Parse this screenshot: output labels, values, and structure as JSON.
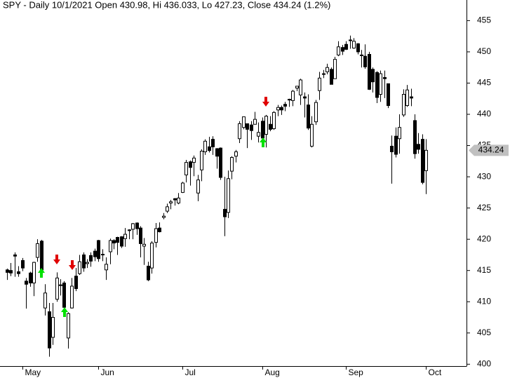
{
  "chart_data": {
    "type": "candlestick",
    "title": "SPY - Daily 10/1/2021 Open 430.98, Hi 436.033, Lo 427.23, Close 434.24 (1.2%)",
    "categories": [
      null,
      null,
      null,
      null,
      "May",
      null,
      null,
      null,
      null,
      null,
      null,
      null,
      null,
      null,
      null,
      null,
      null,
      null,
      null,
      null,
      null,
      null,
      null,
      null,
      "Jun",
      null,
      null,
      null,
      null,
      null,
      null,
      null,
      null,
      null,
      null,
      null,
      null,
      null,
      null,
      null,
      null,
      null,
      null,
      null,
      null,
      null,
      "Jul",
      null,
      null,
      null,
      null,
      null,
      null,
      null,
      null,
      null,
      null,
      null,
      null,
      null,
      null,
      null,
      null,
      null,
      null,
      null,
      null,
      "Aug",
      null,
      null,
      null,
      null,
      null,
      null,
      null,
      null,
      null,
      null,
      null,
      null,
      null,
      null,
      null,
      null,
      null,
      null,
      null,
      null,
      null,
      "Sep",
      null,
      null,
      null,
      null,
      null,
      null,
      null,
      null,
      null,
      null,
      null,
      null,
      null,
      null,
      null,
      null,
      null,
      null,
      null,
      null,
      "Oct"
    ],
    "open": [
      415.1,
      415.0,
      417.5,
      414.8,
      416.6,
      413.3,
      414.6,
      413.0,
      417.1,
      419.7,
      409.0,
      408.4,
      404.3,
      410.4,
      412.6,
      413.0,
      404.2,
      409.0,
      414.1,
      414.5,
      417.5,
      416.1,
      417.4,
      418.1,
      419.8,
      417.6,
      415.1,
      418.0,
      419.8,
      420.3,
      420.4,
      420.1,
      421.4,
      421.6,
      422.6,
      421.8,
      418.9,
      415.7,
      415.4,
      419.5,
      421.8,
      423.5,
      424.5,
      425.8,
      426.5,
      425.8,
      427.5,
      430.3,
      432.4,
      432.3,
      427.4,
      431.1,
      434.0,
      434.8,
      436.0,
      434.5,
      434.6,
      424.8,
      424.3,
      430.9,
      433.3,
      436.1,
      437.9,
      438.5,
      438.3,
      438.4,
      436.5,
      438.9,
      436.8,
      438.4,
      437.7,
      440.7,
      441.1,
      441.6,
      442.4,
      442.2,
      444.2,
      443.1,
      442.8,
      441.5,
      434.9,
      438.8,
      443.8,
      446.5,
      446.8,
      447.2,
      445.7,
      449.5,
      450.7,
      451.2,
      451.9,
      450.6,
      451.3,
      449.5,
      449.3,
      449.6,
      447.2,
      446.7,
      443.2,
      445.9,
      444.9,
      434.9,
      436.5,
      436.1,
      439.9,
      441.4,
      442.8,
      439.0,
      435.2,
      436.0,
      430.98
    ],
    "high": [
      415.3,
      416.2,
      417.9,
      415.7,
      417.0,
      413.8,
      414.8,
      416.4,
      420.0,
      419.9,
      412.8,
      409.8,
      409.8,
      414.7,
      413.6,
      413.3,
      408.3,
      413.8,
      415.4,
      417.5,
      417.9,
      416.8,
      417.9,
      418.5,
      419.9,
      418.4,
      417.1,
      420.1,
      420.0,
      420.4,
      420.5,
      421.8,
      421.6,
      422.6,
      422.7,
      422.1,
      420.2,
      416.4,
      419.7,
      422.6,
      422.7,
      424.2,
      425.7,
      426.3,
      426.6,
      427.4,
      429.2,
      432.7,
      432.6,
      433.4,
      430.3,
      434.4,
      436.0,
      436.4,
      436.5,
      434.6,
      434.7,
      430.0,
      431.0,
      433.3,
      434.3,
      438.9,
      439.6,
      438.5,
      438.9,
      440.4,
      438.7,
      439.5,
      439.9,
      439.7,
      440.5,
      441.5,
      441.4,
      442.0,
      442.5,
      443.9,
      444.5,
      445.7,
      443.5,
      443.2,
      439.7,
      442.3,
      446.8,
      447.1,
      448.1,
      447.5,
      449.2,
      451.7,
      451.1,
      451.7,
      452.6,
      452.2,
      451.4,
      450.3,
      451.2,
      450.0,
      447.5,
      446.9,
      447.0,
      447.0,
      444.9,
      436.6,
      437.9,
      440.0,
      444.0,
      444.7,
      444.1,
      440.0,
      437.0,
      436.8,
      436.033
    ],
    "low": [
      413.5,
      414.1,
      414.0,
      414.0,
      414.9,
      408.9,
      412.4,
      410.9,
      416.4,
      415.0,
      407.8,
      401.2,
      403.1,
      410.0,
      411.0,
      409.0,
      402.5,
      408.9,
      411.7,
      414.3,
      414.8,
      415.4,
      415.6,
      416.5,
      416.4,
      416.5,
      413.5,
      416.0,
      418.4,
      417.5,
      418.6,
      418.8,
      420.0,
      420.0,
      420.7,
      417.1,
      415.9,
      413.3,
      414.5,
      418.7,
      421.1,
      423.2,
      424.2,
      424.8,
      425.4,
      425.6,
      427.4,
      429.1,
      428.6,
      430.1,
      426.1,
      429.3,
      433.5,
      433.9,
      433.5,
      431.3,
      429.5,
      420.5,
      423.4,
      429.6,
      432.3,
      435.4,
      437.6,
      434.6,
      435.9,
      438.4,
      435.5,
      435.8,
      434.7,
      437.3,
      437.5,
      439.7,
      439.9,
      440.5,
      441.2,
      441.3,
      443.7,
      441.5,
      439.5,
      437.5,
      434.7,
      438.3,
      442.3,
      445.8,
      446.4,
      444.8,
      445.7,
      449.3,
      449.5,
      450.3,
      450.5,
      450.5,
      449.6,
      447.5,
      447.3,
      443.9,
      443.5,
      441.8,
      442.0,
      442.6,
      441.0,
      428.9,
      433.1,
      433.7,
      439.6,
      441.2,
      441.3,
      432.9,
      433.7,
      428.8,
      427.23
    ],
    "close": [
      414.7,
      414.6,
      417.3,
      414.5,
      415.4,
      412.8,
      413.0,
      416.3,
      419.3,
      415.1,
      411.4,
      402.6,
      407.5,
      413.8,
      412.7,
      409.1,
      408.1,
      412.5,
      412.1,
      416.4,
      415.4,
      416.3,
      416.5,
      417.2,
      416.9,
      417.5,
      416.0,
      419.8,
      419.4,
      419.5,
      418.9,
      420.8,
      421.5,
      422.5,
      421.7,
      419.3,
      419.2,
      413.5,
      419.4,
      421.7,
      421.2,
      423.7,
      425.2,
      426.0,
      426.3,
      426.6,
      429.0,
      432.3,
      431.5,
      433.0,
      429.5,
      434.1,
      435.7,
      434.2,
      434.8,
      433.3,
      429.9,
      423.6,
      429.7,
      433.1,
      434.0,
      438.5,
      439.6,
      437.6,
      437.4,
      439.2,
      437.1,
      436.2,
      439.7,
      437.6,
      440.3,
      441.1,
      440.7,
      441.3,
      442.3,
      443.7,
      444.5,
      445.5,
      442.6,
      437.8,
      438.4,
      441.9,
      445.8,
      446.5,
      447.5,
      444.8,
      448.8,
      450.8,
      450.1,
      450.4,
      451.8,
      451.7,
      450.0,
      449.5,
      447.6,
      444.0,
      445.2,
      442.7,
      446.5,
      445.7,
      441.4,
      434.0,
      433.6,
      437.9,
      443.2,
      443.9,
      442.6,
      433.7,
      434.4,
      429.1,
      434.24
    ],
    "last_price": 434.24,
    "up_color": "#ffffff",
    "down_color": "#000000",
    "edge_color": "#000000",
    "ylim": [
      399.7,
      458.3
    ],
    "yticks": [
      400,
      405,
      410,
      415,
      420,
      425,
      430,
      435,
      440,
      445,
      450,
      455
    ]
  }
}
